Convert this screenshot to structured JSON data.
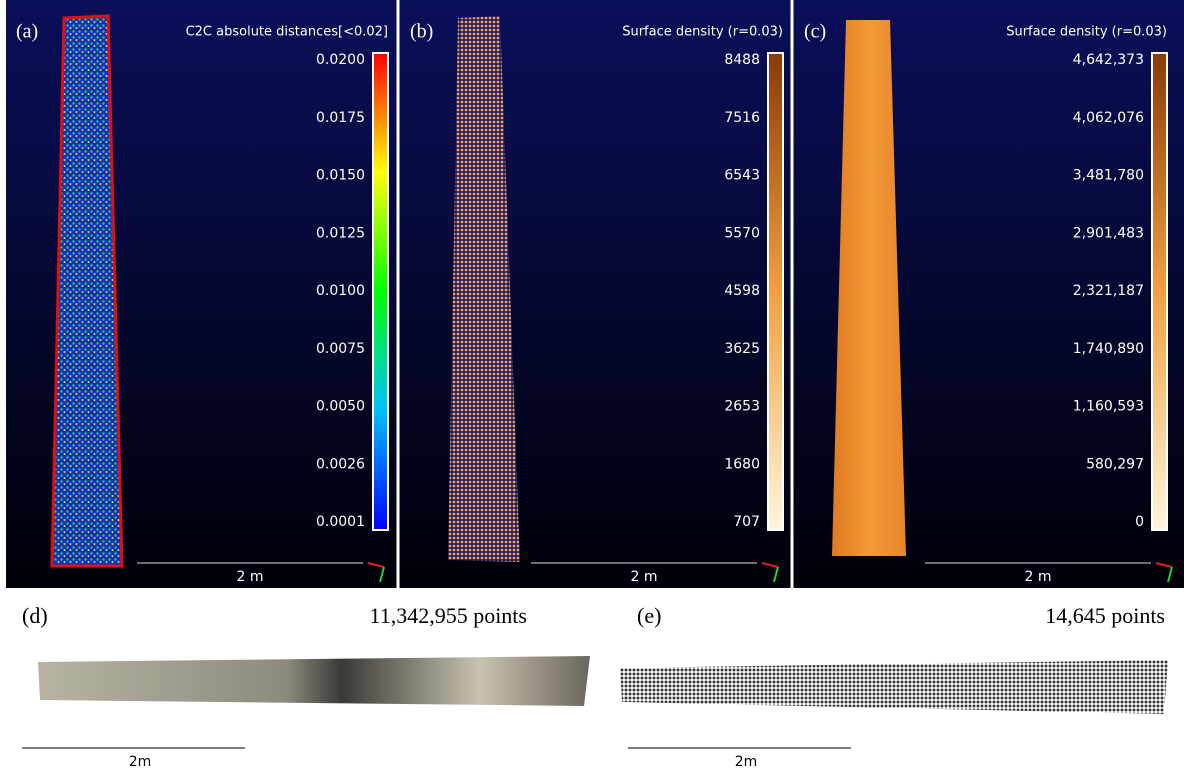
{
  "panels": [
    {
      "label": "(a)",
      "title": "C2C absolute distances[<0.02]",
      "ticks": [
        "0.0200",
        "0.0175",
        "0.0150",
        "0.0125",
        "0.0100",
        "0.0075",
        "0.0050",
        "0.0026",
        "0.0001"
      ],
      "scale": "2 m"
    },
    {
      "label": "(b)",
      "title": "Surface density (r=0.03)",
      "ticks": [
        "8488",
        "7516",
        "6543",
        "5570",
        "4598",
        "3625",
        "2653",
        "1680",
        "707"
      ],
      "scale": "2 m"
    },
    {
      "label": "(c)",
      "title": "Surface density (r=0.03)",
      "ticks": [
        "4,642,373",
        "4,062,076",
        "3,481,780",
        "2,901,483",
        "2,321,187",
        "1,740,890",
        "1,160,593",
        "580,297",
        "0"
      ],
      "scale": "2 m"
    }
  ],
  "views": [
    {
      "label": "(d)",
      "count": "11,342,955 points",
      "scale": "2m"
    },
    {
      "label": "(e)",
      "count": "14,645 points",
      "scale": "2m"
    }
  ]
}
